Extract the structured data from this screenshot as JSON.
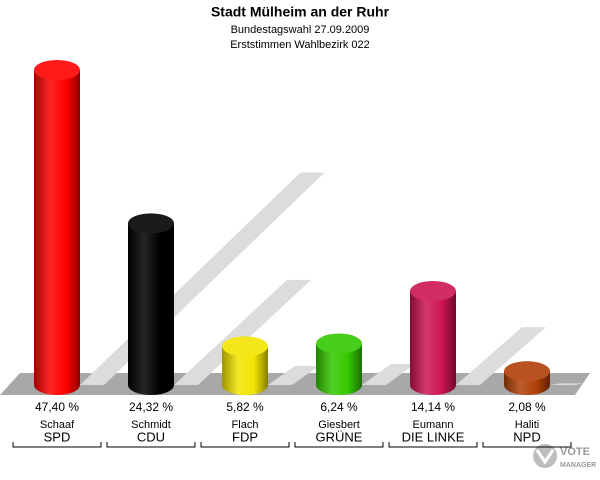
{
  "chart_data": {
    "type": "bar",
    "title": "Stadt Mülheim an der Ruhr",
    "subtitles": [
      "Bundestagswahl 27.09.2009",
      "Erststimmen Wahlbezirk 022"
    ],
    "categories": [
      "SPD",
      "CDU",
      "FDP",
      "GRÜNE",
      "DIE LINKE",
      "NPD"
    ],
    "candidates": [
      "Schaaf",
      "Schmidt",
      "Flach",
      "Giesbert",
      "Eumann",
      "Haliti"
    ],
    "values": [
      47.4,
      24.32,
      5.82,
      6.24,
      14.14,
      2.08
    ],
    "value_labels": [
      "47,40 %",
      "24,32 %",
      "5,82 %",
      "6,24 %",
      "14,14 %",
      "2,08 %"
    ],
    "colors": [
      "#ff0000",
      "#000000",
      "#f2e400",
      "#33c800",
      "#cc1452",
      "#b04008"
    ],
    "logo": [
      "VOTE",
      "MANAGER"
    ]
  }
}
